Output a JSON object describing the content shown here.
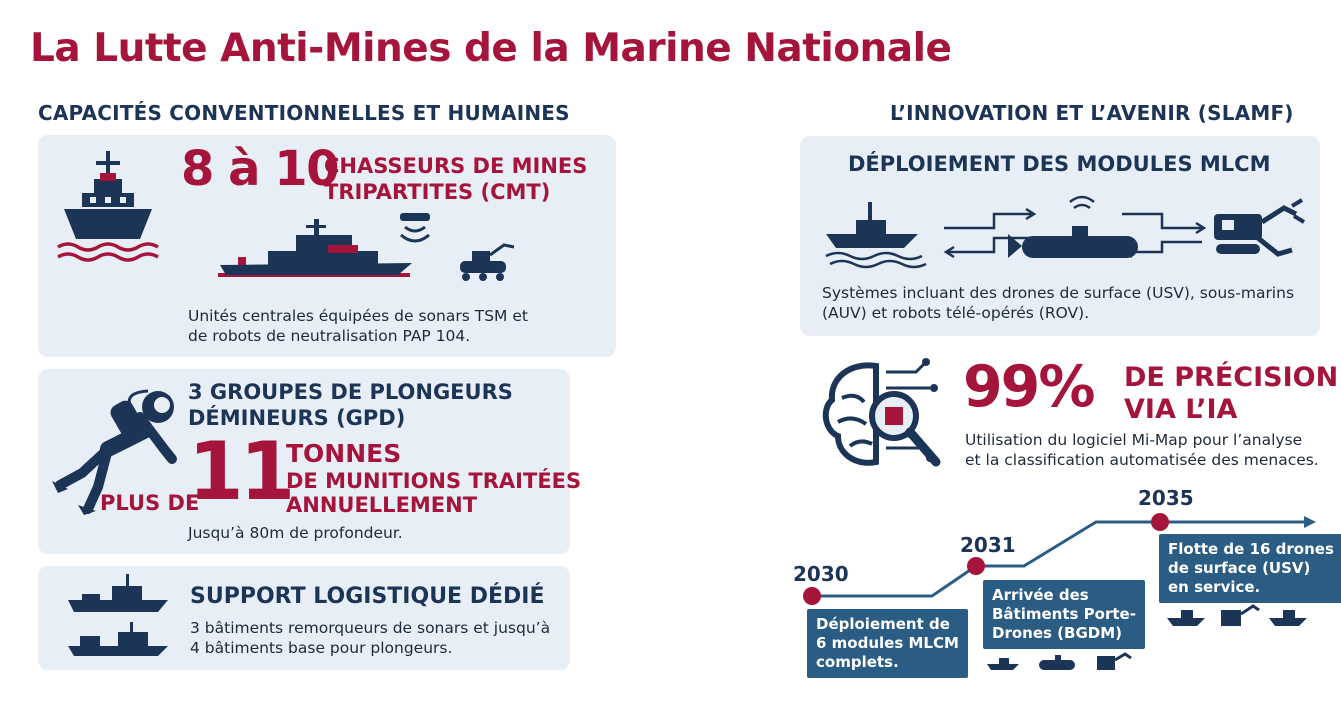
{
  "title": "La Lutte Anti-Mines de la Marine Nationale",
  "left_section": {
    "heading": "CAPACITÉS CONVENTIONNELLES ET HUMAINES",
    "card1": {
      "big_number": "8 à 10",
      "label_line1": "CHASSEURS DE MINES",
      "label_line2": "TRIPARTITES (CMT)",
      "desc_line1": "Unités centrales équipées de sonars TSM et",
      "desc_line2": "de robots de neutralisation PAP 104."
    },
    "card2": {
      "title_line1": "3 GROUPES DE PLONGEURS",
      "title_line2": "DÉMINEURS (GPD)",
      "prefix": "PLUS DE",
      "big_number": "11",
      "unit": "TONNES",
      "label_line1": "DE MUNITIONS TRAITÉES",
      "label_line2": "ANNUELLEMENT",
      "desc": "Jusqu’à 80m de profondeur."
    },
    "card3": {
      "title": "SUPPORT LOGISTIQUE DÉDIÉ",
      "desc_line1": "3 bâtiments remorqueurs de sonars et jusqu’à",
      "desc_line2": "4 bâtiments base pour plongeurs."
    }
  },
  "right_section": {
    "heading": "L’INNOVATION ET L’AVENIR (SLAMF)",
    "card1": {
      "title": "DÉPLOIEMENT DES MODULES MLCM",
      "desc_line1": "Systèmes incluant des drones de surface (USV), sous-marins",
      "desc_line2": "(AUV) et robots télé-opérés (ROV)."
    },
    "ai": {
      "big_number": "99%",
      "label_line1": "DE PRÉCISION",
      "label_line2": "VIA L’IA",
      "desc_line1": "Utilisation du logiciel Mi-Map pour l’analyse",
      "desc_line2": "et la classification automatisée des menaces."
    },
    "timeline": [
      {
        "year": "2030",
        "lines": [
          "Déploiement de",
          "6 modules MLCM",
          "complets."
        ]
      },
      {
        "year": "2031",
        "lines": [
          "Arrivée des",
          "Bâtiments Porte-",
          "Drones (BGDM)"
        ]
      },
      {
        "year": "2035",
        "lines": [
          "Flotte de 16 drones",
          "de surface (USV)",
          "en service."
        ]
      }
    ]
  },
  "colors": {
    "navy": "#1c3557",
    "accent": "#a5143a",
    "card": "#e8eef5",
    "timeline_box": "#2b5d84"
  },
  "icons": [
    "ship-icon",
    "sonar-wave-icon",
    "minehunter-icon",
    "rov-icon",
    "diver-icon",
    "support-ship-icon",
    "usv-icon",
    "auv-icon",
    "robot-arm-icon",
    "ai-brain-icon"
  ]
}
